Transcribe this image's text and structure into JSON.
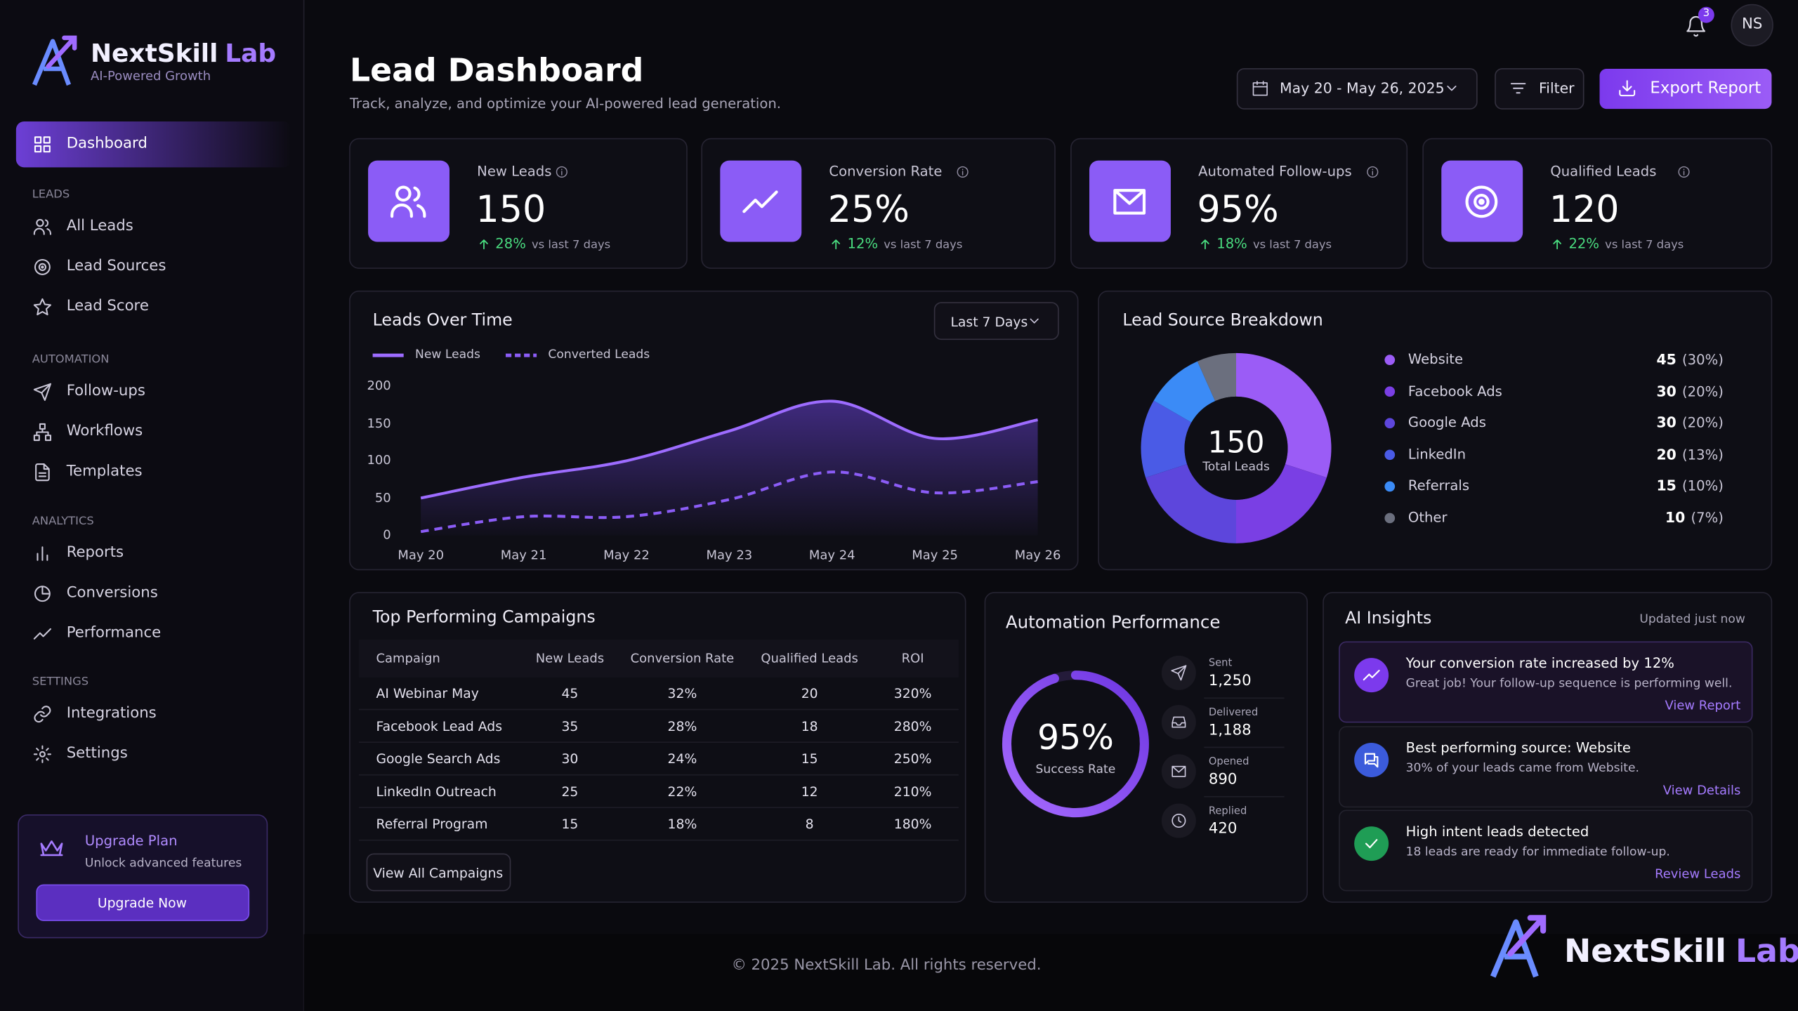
{
  "sidebar": {
    "brand": "NextSkill",
    "brand_accent": "Lab",
    "tagline": "AI-Powered Growth",
    "active": "Dashboard",
    "sections": [
      {
        "title": "LEADS",
        "items": [
          "All Leads",
          "Lead Sources",
          "Lead Score"
        ]
      },
      {
        "title": "AUTOMATION",
        "items": [
          "Follow-ups",
          "Workflows",
          "Templates"
        ]
      },
      {
        "title": "ANALYTICS",
        "items": [
          "Reports",
          "Conversions",
          "Performance"
        ]
      },
      {
        "title": "SETTINGS",
        "items": [
          "Integrations",
          "Settings"
        ]
      }
    ],
    "upgrade": {
      "title": "Upgrade Plan",
      "text": "Unlock advanced features",
      "button": "Upgrade Now"
    }
  },
  "topbar": {
    "notifications": "3",
    "avatar": "NS"
  },
  "header": {
    "title": "Lead Dashboard",
    "subtitle": "Track, analyze, and optimize your AI-powered lead generation.",
    "date_range": "May 20 - May 26, 2025",
    "filter": "Filter",
    "export": "Export Report"
  },
  "kpis": [
    {
      "label": "New Leads",
      "value": "150",
      "change": "28%",
      "note": "vs last 7 days"
    },
    {
      "label": "Conversion Rate",
      "value": "25%",
      "change": "12%",
      "note": "vs last 7 days"
    },
    {
      "label": "Automated Follow-ups",
      "value": "95%",
      "change": "18%",
      "note": "vs last 7 days"
    },
    {
      "label": "Qualified Leads",
      "value": "120",
      "change": "22%",
      "note": "vs last 7 days"
    }
  ],
  "chart_data": [
    {
      "type": "line",
      "title": "Leads Over Time",
      "range_select": "Last 7 Days",
      "categories": [
        "May 20",
        "May 21",
        "May 22",
        "May 23",
        "May 24",
        "May 25",
        "May 26"
      ],
      "series": [
        {
          "name": "New Leads",
          "color": "#9d6cff",
          "dashed": false,
          "area": true,
          "values": [
            50,
            78,
            100,
            140,
            180,
            130,
            155
          ]
        },
        {
          "name": "Converted Leads",
          "color": "#8b5cf6",
          "dashed": true,
          "area": false,
          "values": [
            5,
            25,
            25,
            48,
            85,
            57,
            72
          ]
        }
      ],
      "ylim": [
        0,
        200
      ],
      "yticks": [
        0,
        50,
        100,
        150,
        200
      ],
      "grid": false
    },
    {
      "type": "donut",
      "title": "Lead Source Breakdown",
      "center_value": "150",
      "center_label": "Total Leads",
      "categories": [
        "Website",
        "Facebook Ads",
        "Google Ads",
        "LinkedIn",
        "Referrals",
        "Other"
      ],
      "values": [
        45,
        30,
        30,
        20,
        15,
        10
      ],
      "share_labels": [
        "(30%)",
        "(20%)",
        "(20%)",
        "(13%)",
        "(10%)",
        "(7%)"
      ],
      "colors": [
        "#9b5cf6",
        "#7a3fe4",
        "#5d46dc",
        "#4a5be6",
        "#3b8bf6",
        "#6b6f7e"
      ]
    }
  ],
  "campaigns": {
    "title": "Top Performing Campaigns",
    "columns": [
      "Campaign",
      "New Leads",
      "Conversion Rate",
      "Qualified Leads",
      "ROI"
    ],
    "rows": [
      [
        "AI Webinar May",
        "45",
        "32%",
        "20",
        "320%"
      ],
      [
        "Facebook Lead Ads",
        "35",
        "28%",
        "18",
        "280%"
      ],
      [
        "Google Search Ads",
        "30",
        "24%",
        "15",
        "250%"
      ],
      [
        "LinkedIn Outreach",
        "25",
        "22%",
        "12",
        "210%"
      ],
      [
        "Referral Program",
        "15",
        "18%",
        "8",
        "180%"
      ]
    ],
    "button": "View All Campaigns"
  },
  "automation": {
    "title": "Automation Performance",
    "rate": 95,
    "rate_label": "95%",
    "rate_caption": "Success Rate",
    "stats": [
      {
        "label": "Sent",
        "value": "1,250"
      },
      {
        "label": "Delivered",
        "value": "1,188"
      },
      {
        "label": "Opened",
        "value": "890"
      },
      {
        "label": "Replied",
        "value": "420"
      }
    ]
  },
  "insights": {
    "title": "AI Insights",
    "updated": "Updated just now",
    "items": [
      {
        "title": "Your conversion rate increased by 12%",
        "text": "Great job! Your follow-up sequence is performing well.",
        "link": "View Report"
      },
      {
        "title": "Best performing source: Website",
        "text": "30% of your leads came from Website.",
        "link": "View Details"
      },
      {
        "title": "High intent leads detected",
        "text": "18 leads are ready for immediate follow-up.",
        "link": "Review Leads"
      }
    ]
  },
  "footer": {
    "copyright": "© 2025 NextSkill Lab.  All rights reserved.",
    "brand": "NextSkill",
    "brand_accent": "Lab"
  }
}
